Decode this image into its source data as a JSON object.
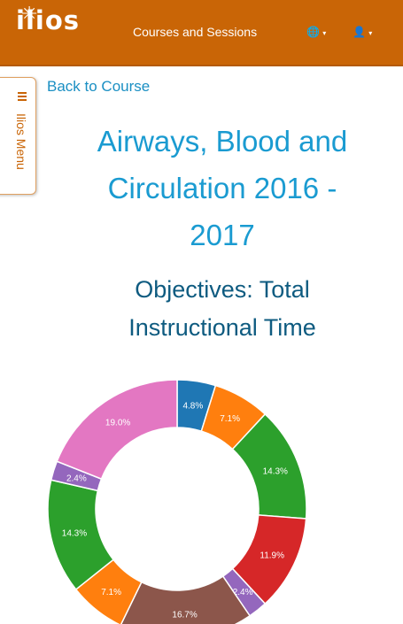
{
  "header": {
    "logo_text": "ilios",
    "nav_title": "Courses and Sessions",
    "icons": [
      "globe-icon",
      "user-icon"
    ],
    "brand_color": "#c96506"
  },
  "side_menu": {
    "label": "Ilios Menu"
  },
  "back_link": "Back to Course",
  "course": {
    "title_lines": [
      "Airways, Blood and",
      "Circulation 2016 -",
      "2017"
    ]
  },
  "section": {
    "title_lines": [
      "Objectives: Total",
      "Instructional Time"
    ]
  },
  "chart_data": {
    "type": "pie",
    "values": [
      4.8,
      7.1,
      14.3,
      11.9,
      2.4,
      16.7,
      7.1,
      14.3,
      2.4,
      19.0
    ],
    "labels": [
      "4.8%",
      "7.1%",
      "14.3%",
      "11.9%",
      "2.4%",
      "16.7%",
      "7.1%",
      "14.3%",
      "2.4%",
      "19.0%"
    ],
    "colors": [
      "#1f77b4",
      "#ff7f0e",
      "#2ca02c",
      "#d62728",
      "#9467bd",
      "#8c564b",
      "#ff7f0e",
      "#2ca02c",
      "#9467bd",
      "#e377c2"
    ]
  }
}
